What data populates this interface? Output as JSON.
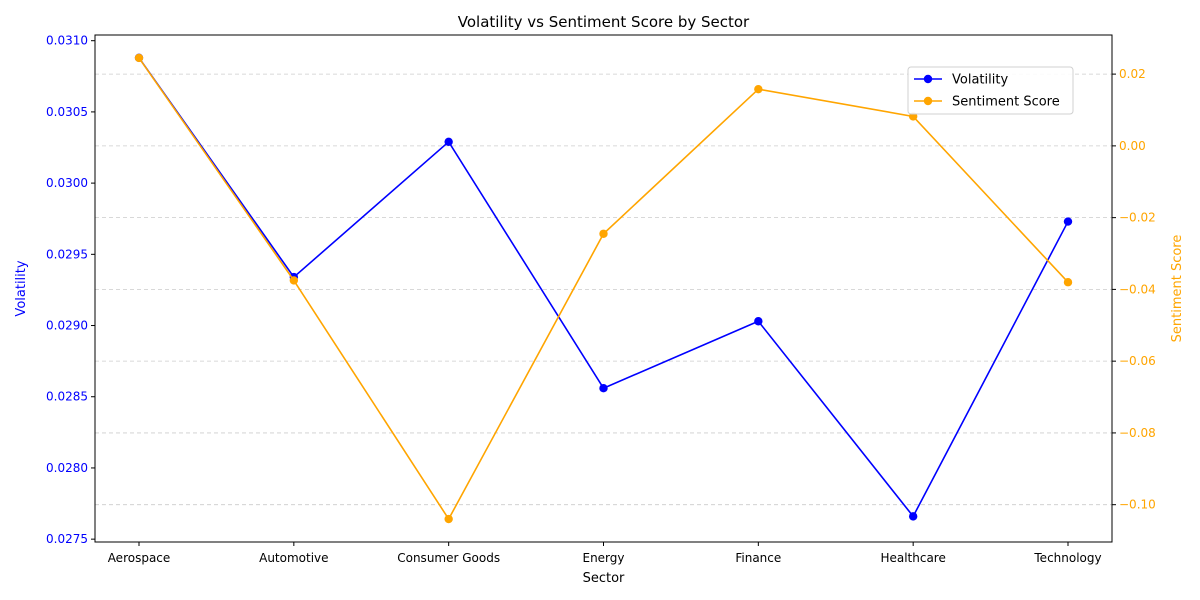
{
  "chart_data": {
    "type": "line",
    "title": "Volatility vs Sentiment Score by Sector",
    "xlabel": "Sector",
    "categories": [
      "Aerospace",
      "Automotive",
      "Consumer Goods",
      "Energy",
      "Finance",
      "Healthcare",
      "Technology"
    ],
    "series": [
      {
        "name": "Volatility",
        "axis": "left",
        "color": "#0000ff",
        "marker": "circle",
        "values": [
          0.03088,
          0.02934,
          0.03029,
          0.02856,
          0.02903,
          0.02766,
          0.02973
        ]
      },
      {
        "name": "Sentiment Score",
        "axis": "right",
        "color": "#ffa500",
        "marker": "circle",
        "values": [
          0.0245,
          -0.0375,
          -0.104,
          -0.0245,
          0.0158,
          0.0082,
          -0.038
        ]
      }
    ],
    "y_left": {
      "label": "Volatility",
      "color": "#0000ff",
      "lim": [
        0.02748,
        0.03104
      ],
      "ticks": [
        0.0275,
        0.028,
        0.0285,
        0.029,
        0.0295,
        0.03,
        0.0305,
        0.031
      ],
      "tick_labels": [
        "0.0275",
        "0.0280",
        "0.0285",
        "0.0290",
        "0.0295",
        "0.0300",
        "0.0305",
        "0.0310"
      ]
    },
    "y_right": {
      "label": "Sentiment Score",
      "color": "#ffa500",
      "lim": [
        -0.1104,
        0.0309
      ],
      "ticks": [
        -0.1,
        -0.08,
        -0.06,
        -0.04,
        -0.02,
        0.0,
        0.02
      ],
      "tick_labels": [
        "−0.10",
        "−0.08",
        "−0.06",
        "−0.04",
        "−0.02",
        "0.00",
        "0.02"
      ]
    },
    "grid": {
      "axis": "y-right",
      "style": "dashed",
      "color": "#cccccc"
    },
    "legend": {
      "placement": "top-right"
    }
  }
}
